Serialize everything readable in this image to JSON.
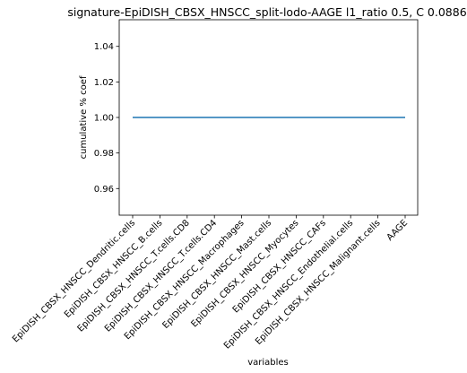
{
  "chart_data": {
    "type": "line",
    "title": "signature-EpiDISH_CBSX_HNSCC_split-lodo-AAGE l1_ratio 0.5, C 0.0886",
    "xlabel": "variables",
    "ylabel": "cumulative % coef",
    "categories": [
      "EpiDISH_CBSX_HNSCC_Dendritic.cells",
      "EpiDISH_CBSX_HNSCC_B.cells",
      "EpiDISH_CBSX_HNSCC_T.cells.CD8",
      "EpiDISH_CBSX_HNSCC_T.cells.CD4",
      "EpiDISH_CBSX_HNSCC_Macrophages",
      "EpiDISH_CBSX_HNSCC_Mast.cells",
      "EpiDISH_CBSX_HNSCC_Myocytes",
      "EpiDISH_CBSX_HNSCC_CAFs",
      "EpiDISH_CBSX_HNSCC_Endothelial.cells",
      "EpiDISH_CBSX_HNSCC_Malignant.cells",
      "AAGE"
    ],
    "series": [
      {
        "values": [
          1.0,
          1.0,
          1.0,
          1.0,
          1.0,
          1.0,
          1.0,
          1.0,
          1.0,
          1.0,
          1.0
        ]
      }
    ],
    "ylim": [
      0.945,
      1.055
    ],
    "yticks": [
      0.96,
      0.98,
      1.0,
      1.02,
      1.04
    ],
    "ytick_labels": [
      "0.96",
      "0.98",
      "1.00",
      "1.02",
      "1.04"
    ],
    "grid": false,
    "line_color": "#1f77b4"
  }
}
